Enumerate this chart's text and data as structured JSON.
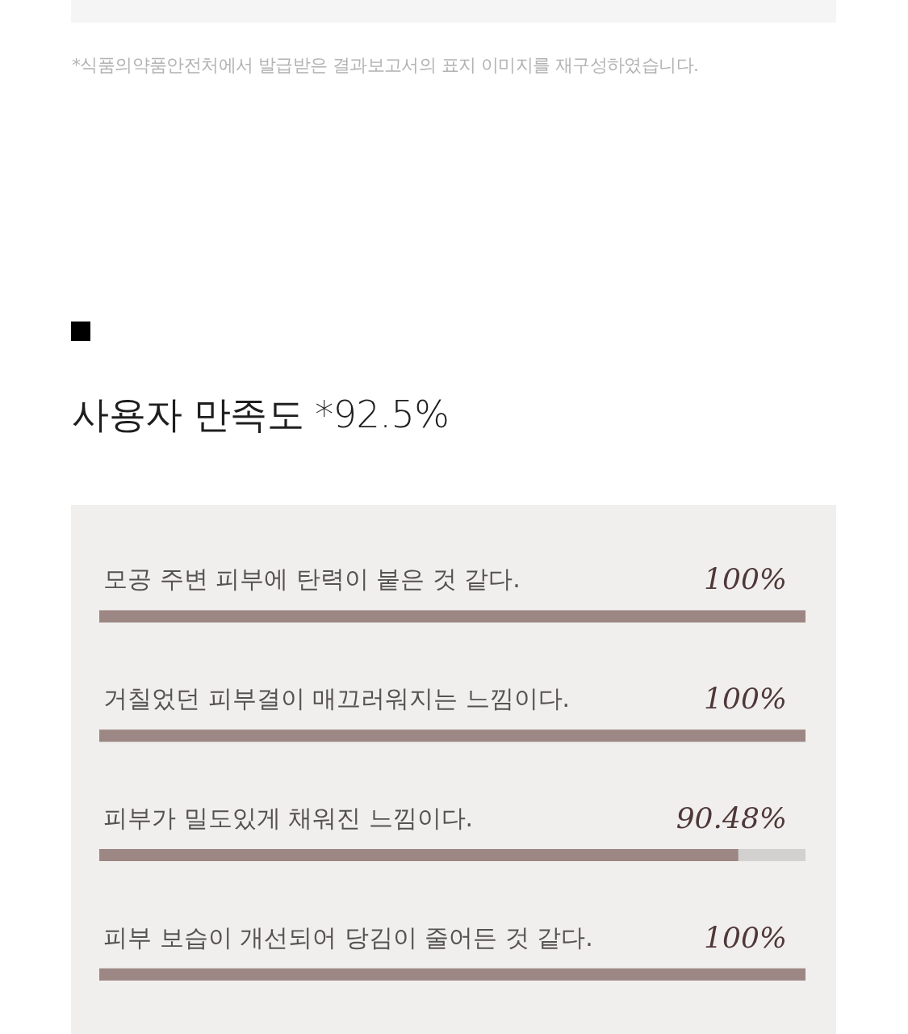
{
  "chart_data": {
    "type": "bar",
    "orientation": "horizontal",
    "title": "사용자 만족도 *92.5%",
    "annotations": [
      "*식품의약품안전처에서 발급받은 결과보고서의 표지 이미지를 재구성하였습니다."
    ],
    "categories": [
      "모공 주변 피부에 탄력이 붙은 것 같다.",
      "거칠었던 피부결이 매끄러워지는 느낌이다.",
      "피부가 밀도있게 채워진 느낌이다.",
      "피부 보습이 개선되어 당김이 줄어든 것 같다."
    ],
    "values": [
      100,
      100,
      90.48,
      100
    ],
    "value_labels": [
      "100%",
      "100%",
      "90.48%",
      "100%"
    ],
    "color": "#9d8785",
    "tick_labels": "y"
  }
}
